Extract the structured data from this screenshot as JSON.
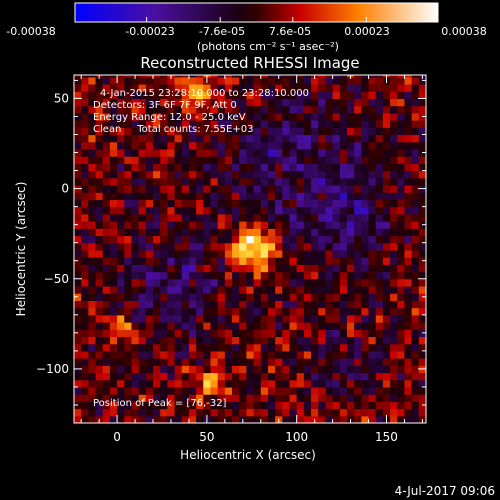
{
  "colorbar": {
    "tick_labels": [
      "-0.00038",
      "-0.00023",
      "-7.6e-05",
      "7.6e-05",
      "0.00023",
      "0.00038"
    ],
    "tick_values": [
      -0.00038,
      -0.00023,
      -7.6e-05,
      7.6e-05,
      0.00023,
      0.00038
    ],
    "range": [
      -0.00038,
      0.00038
    ],
    "unit_label": "(photons cm⁻² s⁻¹ asec⁻²)"
  },
  "chart_data": {
    "type": "heatmap",
    "title": "Reconstructed RHESSI Image",
    "xlabel": "Heliocentric X (arcsec)",
    "ylabel": "Heliocentric Y (arcsec)",
    "xlim": [
      -24,
      172
    ],
    "ylim": [
      -130,
      63
    ],
    "x_ticks": [
      0,
      50,
      100,
      150
    ],
    "y_ticks": [
      50,
      0,
      -50,
      -100
    ],
    "annotations": [
      "4-Jan-2015 23:28:10.000 to 23:28:10.000",
      "Detectors: 3F 6F 7F 9F, Att 0",
      "Energy Range: 12.0 - 25.0 keV",
      "Clean     Total counts: 7.55E+03"
    ],
    "peak_label": "Position of Peak = [76,-32]",
    "peak": [
      76,
      -32
    ],
    "sources": [
      {
        "x": 76,
        "y": -32,
        "amp": 1.0,
        "sigma": 9
      },
      {
        "x": 44,
        "y": 52,
        "amp": 0.55,
        "sigma": 7
      },
      {
        "x": 3,
        "y": -78,
        "amp": 0.55,
        "sigma": 6
      },
      {
        "x": 53,
        "y": -108,
        "amp": 0.55,
        "sigma": 6
      },
      {
        "x": 100,
        "y": 10,
        "amp": -0.35,
        "sigma": 30
      },
      {
        "x": 30,
        "y": -55,
        "amp": -0.35,
        "sigma": 20
      },
      {
        "x": 130,
        "y": -20,
        "amp": -0.3,
        "sigma": 15
      },
      {
        "x": 130,
        "y": -100,
        "amp": -0.25,
        "sigma": 12
      }
    ]
  },
  "footer": {
    "timestamp": "4-Jul-2017 09:06"
  }
}
